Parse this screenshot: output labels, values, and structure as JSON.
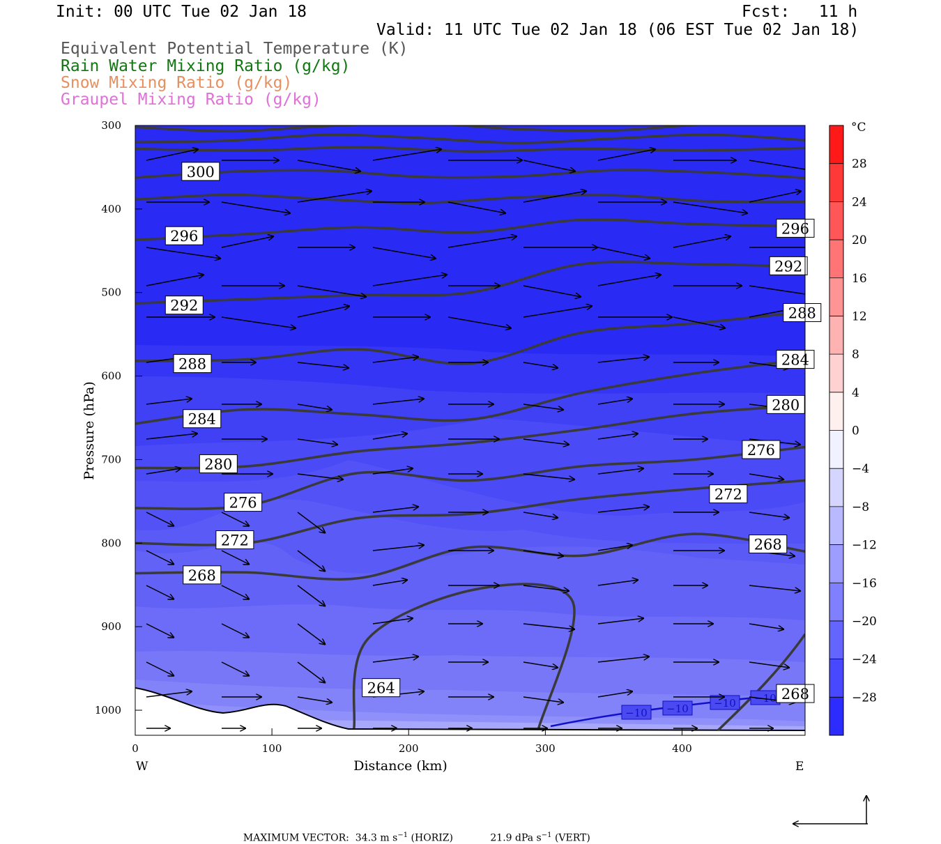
{
  "header": {
    "init": "Init: 00 UTC Tue 02 Jan 18",
    "fcst": "Fcst:   11 h",
    "valid": "Valid: 11 UTC Tue 02 Jan 18 (06 EST Tue 02 Jan 18)",
    "fields": [
      {
        "label": "Equivalent Potential Temperature (K)",
        "color": "#555555"
      },
      {
        "label": "Rain Water Mixing Ratio (g/kg)",
        "color": "#117711"
      },
      {
        "label": "Snow Mixing Ratio (g/kg)",
        "color": "#e69060"
      },
      {
        "label": "Graupel Mixing Ratio (g/kg)",
        "color": "#e070d8"
      }
    ]
  },
  "chart_data": {
    "type": "heatmap",
    "description_fields": "cross-section: temperature shaded, theta-e contours, circulation vectors",
    "xlabel": "Distance (km)",
    "ylabel": "Pressure (hPa)",
    "xlim": [
      0,
      490
    ],
    "ylim": [
      1030,
      300
    ],
    "x_ticks": [
      0,
      100,
      200,
      300,
      400
    ],
    "y_ticks": [
      300,
      400,
      500,
      600,
      700,
      800,
      900,
      1000
    ],
    "left_end_label": "W",
    "right_end_label": "E",
    "colorbar": {
      "unit": "°C",
      "min": -32,
      "max": 32,
      "step": 4,
      "tick_labels": [
        "28",
        "24",
        "20",
        "16",
        "12",
        "8",
        "4",
        "0",
        "−4",
        "−8",
        "−12",
        "−16",
        "−20",
        "−24",
        "−28"
      ],
      "tick_values": [
        28,
        24,
        20,
        16,
        12,
        8,
        4,
        0,
        -4,
        -8,
        -12,
        -16,
        -20,
        -24,
        -28
      ]
    },
    "theta_e_contours": [
      {
        "value": 300,
        "y": [
          328,
          330,
          326,
          331,
          328,
          330,
          327
        ]
      },
      {
        "value": 296,
        "y": [
          437,
          430,
          422,
          428,
          413,
          418,
          421
        ]
      },
      {
        "value": 292,
        "y": [
          513,
          508,
          503,
          500,
          466,
          466,
          469
        ]
      },
      {
        "value": 288,
        "y": [
          582,
          580,
          568,
          585,
          548,
          537,
          523
        ]
      },
      {
        "value": 284,
        "y": [
          657,
          640,
          646,
          652,
          620,
          597,
          580
        ]
      },
      {
        "value": 280,
        "y": [
          710,
          708,
          690,
          680,
          664,
          645,
          635
        ]
      },
      {
        "value": 276,
        "y": [
          758,
          755,
          716,
          725,
          708,
          700,
          685
        ]
      },
      {
        "value": 272,
        "y": [
          800,
          800,
          770,
          765,
          747,
          735,
          725
        ]
      },
      {
        "value": 268,
        "y": [
          836,
          835,
          842,
          805,
          815,
          789,
          810
        ]
      },
      {
        "value": 264,
        "y": [
          1022,
          915,
          855,
          870,
          1022
        ]
      }
    ],
    "contour_labels": [
      {
        "text": "300",
        "x": 30,
        "p": 355
      },
      {
        "text": "296",
        "x": 18,
        "p": 432
      },
      {
        "text": "296",
        "x": 465,
        "p": 423
      },
      {
        "text": "292",
        "x": 18,
        "p": 515
      },
      {
        "text": "292",
        "x": 460,
        "p": 468
      },
      {
        "text": "288",
        "x": 24,
        "p": 585
      },
      {
        "text": "288",
        "x": 470,
        "p": 524
      },
      {
        "text": "284",
        "x": 31,
        "p": 651
      },
      {
        "text": "284",
        "x": 465,
        "p": 580
      },
      {
        "text": "280",
        "x": 43,
        "p": 705
      },
      {
        "text": "280",
        "x": 458,
        "p": 634
      },
      {
        "text": "276",
        "x": 61,
        "p": 751
      },
      {
        "text": "276",
        "x": 440,
        "p": 688
      },
      {
        "text": "272",
        "x": 55,
        "p": 796
      },
      {
        "text": "272",
        "x": 416,
        "p": 741
      },
      {
        "text": "268",
        "x": 31,
        "p": 838
      },
      {
        "text": "268",
        "x": 445,
        "p": 801
      },
      {
        "text": "268",
        "x": 465,
        "p": 980
      },
      {
        "text": "264",
        "x": 162,
        "p": 973
      }
    ],
    "temperature_minus10_label": "−10",
    "maximum_vector": {
      "label": "MAXIMUM VECTOR:",
      "horiz": "34.3 m s",
      "horiz_unit_exp": "−1",
      "horiz_suffix": "(HORIZ)",
      "vert": "21.9 dPa s",
      "vert_unit_exp": "−1",
      "vert_suffix": "(VERT)"
    }
  }
}
